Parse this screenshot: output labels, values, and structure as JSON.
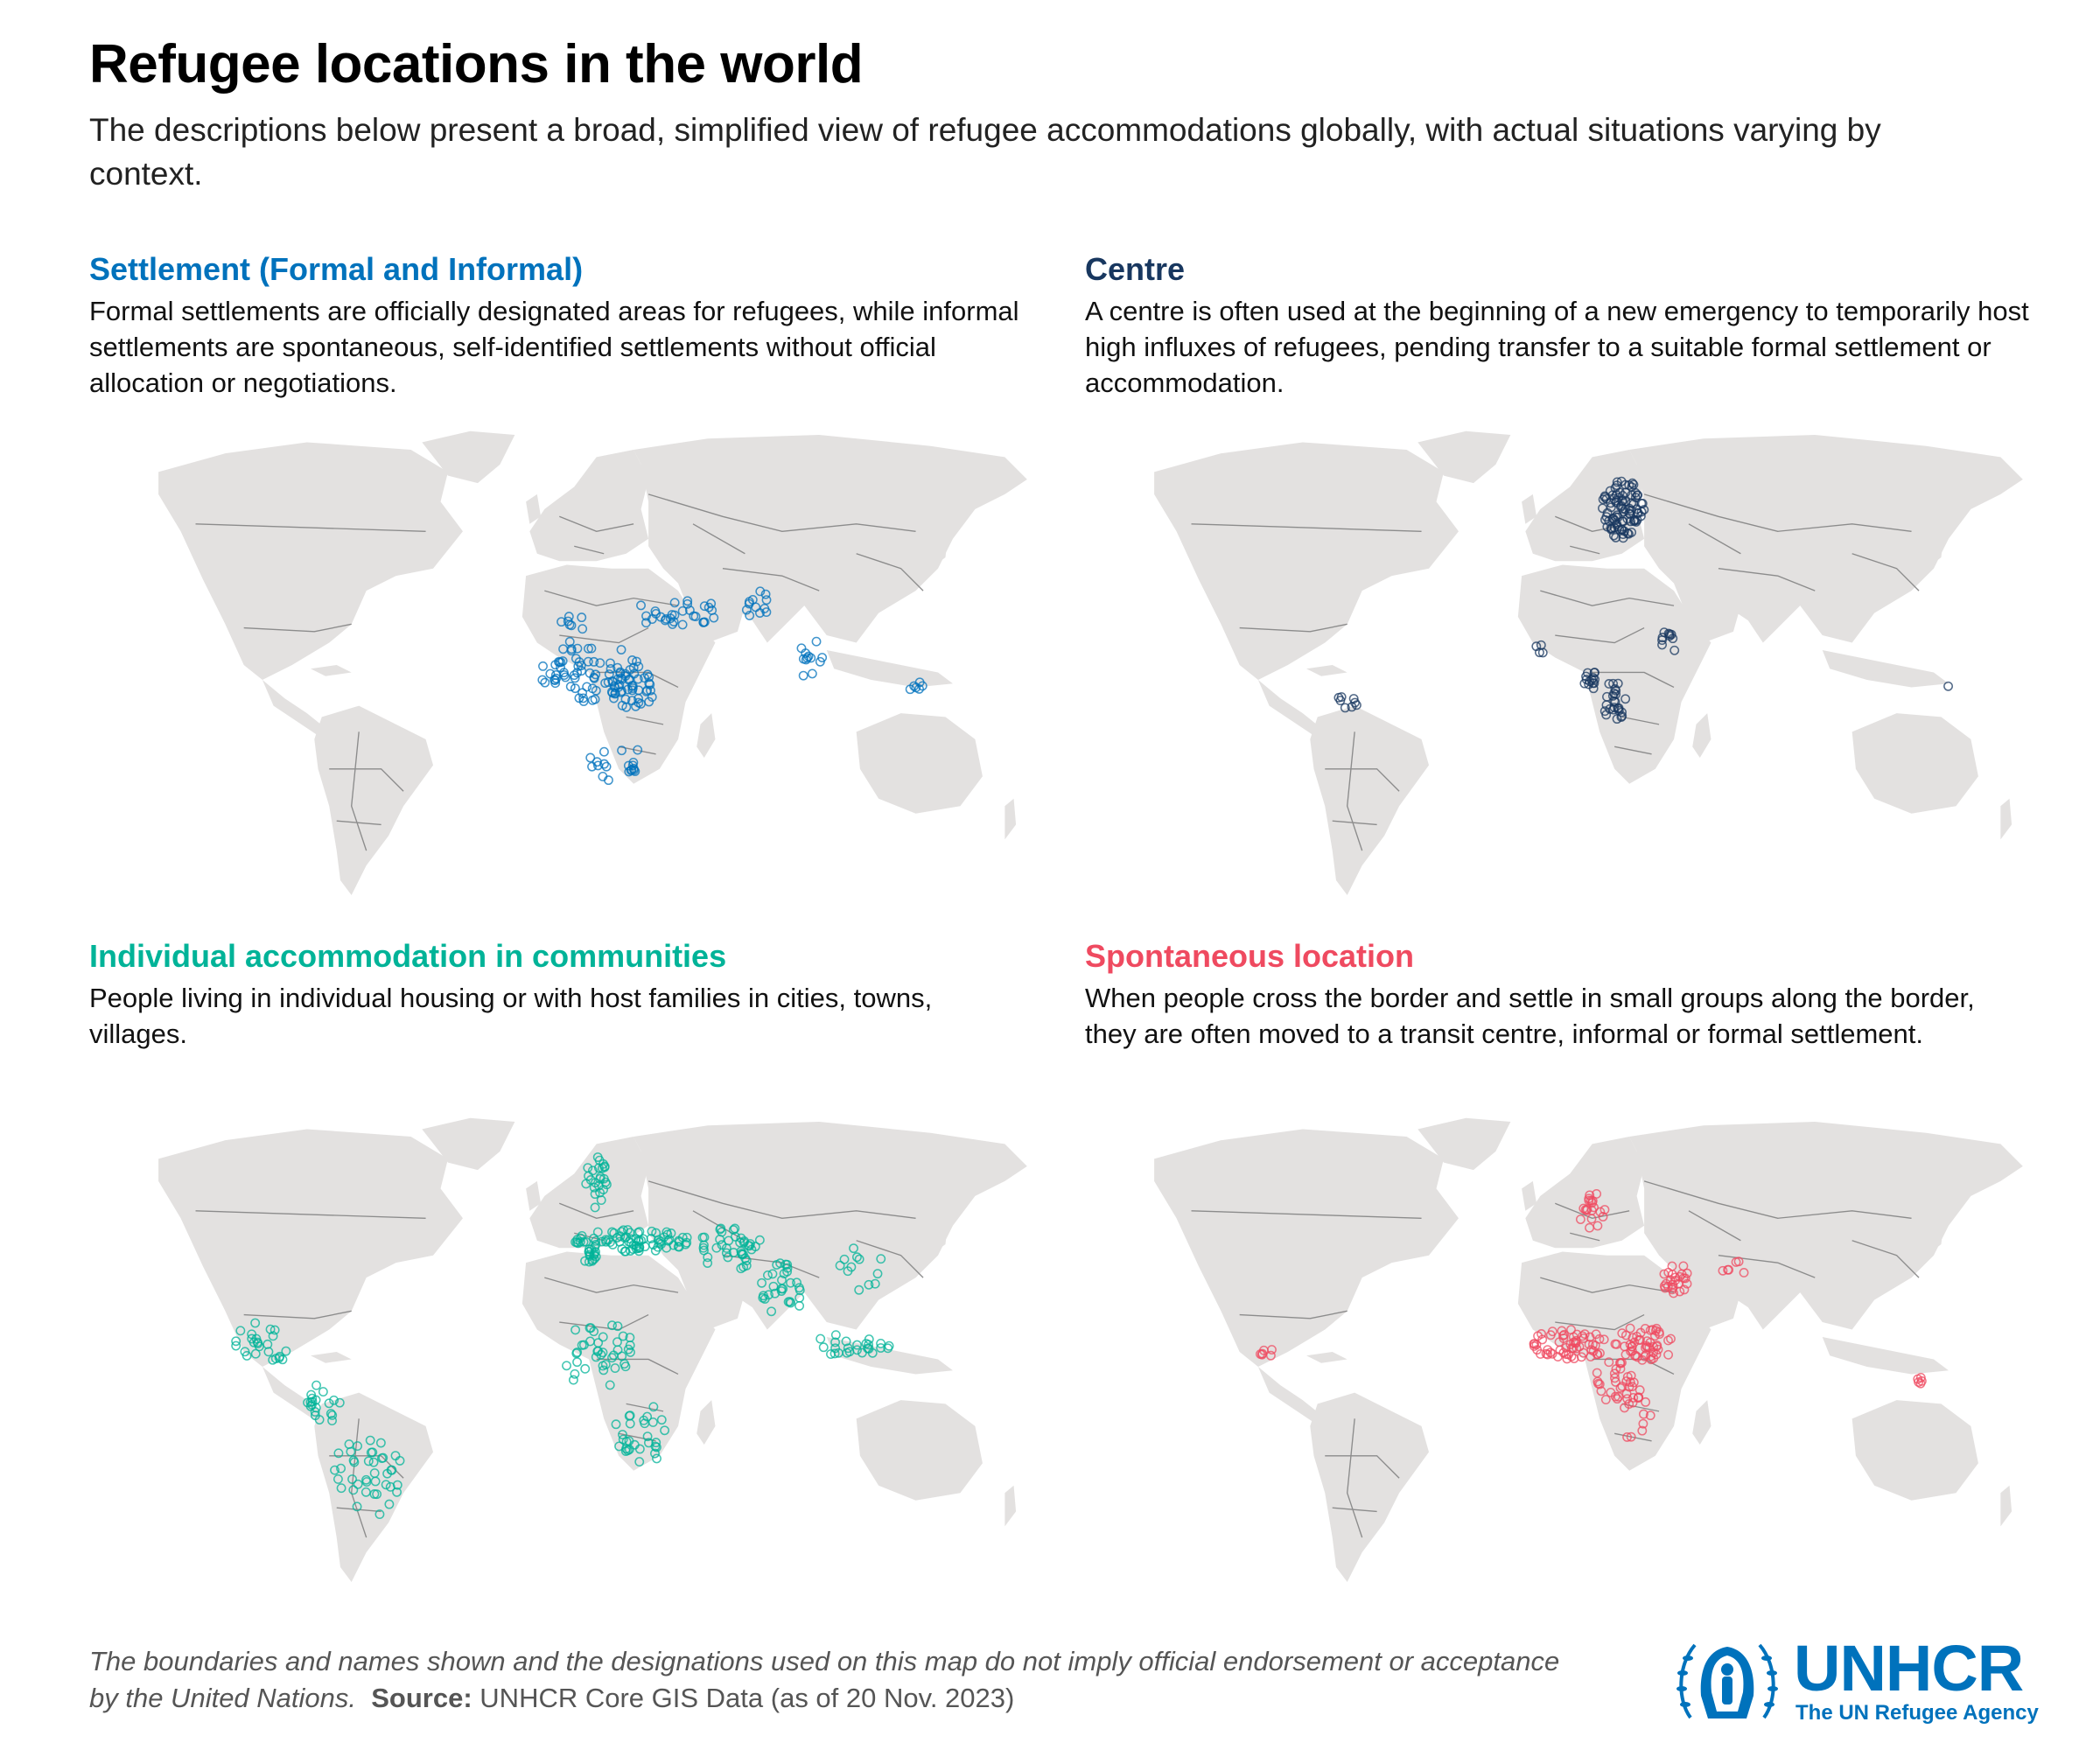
{
  "title": "Refugee locations in the world",
  "subtitle": "The descriptions below present a broad, simplified view of refugee accommodations globally, with actual situations varying by context.",
  "colors": {
    "land": "#e3e1e0",
    "border": "#8c8c8c",
    "settlement": "#0072bc",
    "centre": "#18375f",
    "individual": "#00b398",
    "spontaneous": "#ef4a60"
  },
  "panels": [
    {
      "id": "settlement",
      "title": "Settlement (Formal and Informal)",
      "description": "Formal settlements are officially designated areas for refugees, while informal settlements are spontaneous, self-identified settlements without official allocation or negotiations.",
      "color": "#0072bc"
    },
    {
      "id": "centre",
      "title": "Centre",
      "description": "A centre is often used at the beginning of a new emergency to temporarily host high influxes of refugees, pending transfer to a suitable formal settlement or accommodation.",
      "color": "#18375f"
    },
    {
      "id": "individual",
      "title": "Individual accommodation in communities",
      "description": "People living in individual housing or with host families in cities, towns, villages.",
      "color": "#00b398"
    },
    {
      "id": "spontaneous",
      "title": "Spontaneous location",
      "description": "When people cross the border and settle in small groups along the border, they are often moved to a transit centre, informal or formal settlement.",
      "color": "#ef4a60"
    }
  ],
  "footer": {
    "disclaimer": "The boundaries and names shown and the designations used on this map do not imply official endorsement or acceptance by the United Nations.",
    "source_label": "Source:",
    "source_text": "UNHCR Core GIS Data (as of 20 Nov. 2023)"
  },
  "logo": {
    "name": "UNHCR",
    "tagline": "The UN Refugee Agency",
    "icon": "unhcr-emblem-icon"
  }
}
